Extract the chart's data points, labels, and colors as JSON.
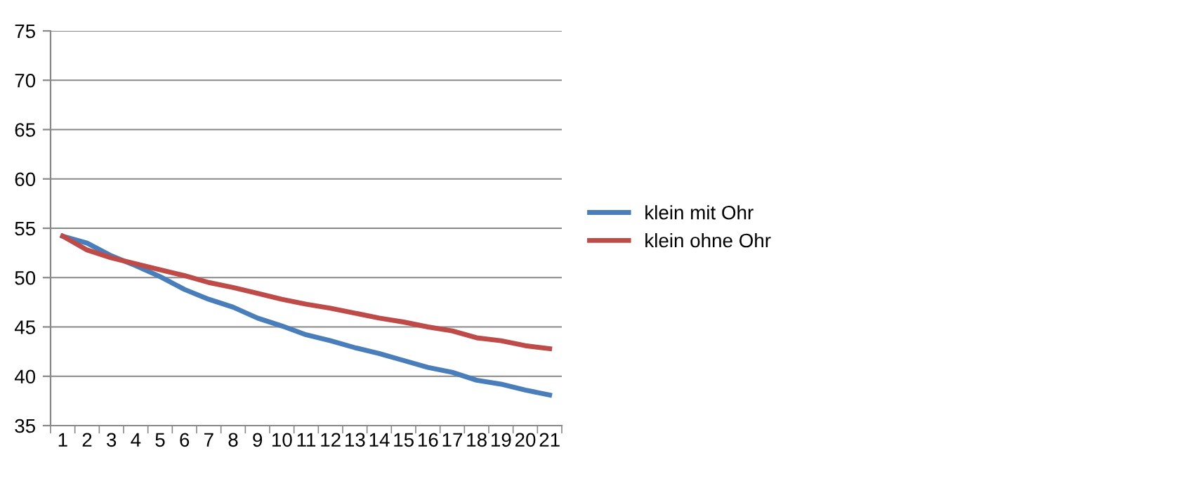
{
  "chart_data": {
    "type": "line",
    "categories": [
      "1",
      "2",
      "3",
      "4",
      "5",
      "6",
      "7",
      "8",
      "9",
      "10",
      "11",
      "12",
      "13",
      "14",
      "15",
      "16",
      "17",
      "18",
      "19",
      "20",
      "21"
    ],
    "series": [
      {
        "name": "klein mit Ohr",
        "color": "#4a7ebb",
        "values": [
          54.2,
          53.5,
          52.2,
          51.2,
          50.1,
          48.8,
          47.8,
          47.0,
          45.9,
          45.1,
          44.2,
          43.6,
          42.9,
          42.3,
          41.6,
          40.9,
          40.4,
          39.6,
          39.2,
          38.6,
          38.1
        ]
      },
      {
        "name": "klein ohne Ohr",
        "color": "#be4b48",
        "values": [
          54.2,
          52.8,
          52.0,
          51.4,
          50.8,
          50.2,
          49.5,
          49.0,
          48.4,
          47.8,
          47.3,
          46.9,
          46.4,
          45.9,
          45.5,
          45.0,
          44.6,
          43.9,
          43.6,
          43.1,
          42.8
        ]
      }
    ],
    "ylim": [
      35,
      75
    ],
    "yticks": [
      35,
      40,
      45,
      50,
      55,
      60,
      65,
      70,
      75
    ],
    "grid": "y",
    "legend": "right",
    "marker": "none",
    "line_style": "solid"
  }
}
